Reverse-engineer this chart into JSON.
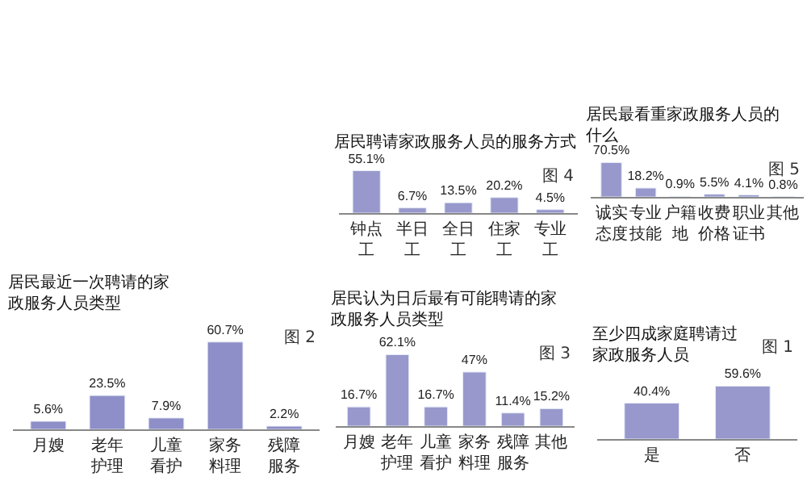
{
  "chart_data": [
    {
      "type": "bar",
      "title": "居民聘请家政服务人员的服务方式",
      "annotations": [
        "图 4"
      ],
      "categories": [
        "钟点工",
        "半日工",
        "全日工",
        "住家工",
        "专业工"
      ],
      "values": [
        55.1,
        6.7,
        13.5,
        20.2,
        4.5
      ],
      "value_labels": [
        "55.1%",
        "6.7%",
        "13.5%",
        "20.2%",
        "4.5%"
      ],
      "color": "#9898cc",
      "tick_labels": "x"
    },
    {
      "type": "bar",
      "title": "居民最看重家政服务人员的什么",
      "annotations": [
        "图 5"
      ],
      "categories": [
        "诚实态度",
        "专业技能",
        "户籍地",
        "收费价格",
        "职业证书",
        "其他"
      ],
      "values": [
        70.5,
        18.2,
        0.9,
        5.5,
        4.1,
        0.8
      ],
      "value_labels": [
        "70.5%",
        "18.2%",
        "0.9%",
        "5.5%",
        "4.1%",
        "0.8%"
      ],
      "color": "#9898cc",
      "tick_labels": "x"
    },
    {
      "type": "bar",
      "title": "居民最近一次聘请的家政服务人员类型",
      "annotations": [
        "图 2"
      ],
      "categories": [
        "月嫂",
        "老年护理",
        "儿童看护",
        "家务料理",
        "残障服务"
      ],
      "values": [
        5.6,
        23.5,
        7.9,
        60.7,
        2.2
      ],
      "value_labels": [
        "5.6%",
        "23.5%",
        "7.9%",
        "60.7%",
        "2.2%"
      ],
      "color": "#8e8ec8",
      "tick_labels": "x"
    },
    {
      "type": "bar",
      "title": "居民认为日后最有可能聘请的家政服务人员类型",
      "annotations": [
        "图 3"
      ],
      "categories": [
        "月嫂",
        "老年护理",
        "儿童看护",
        "家务料理",
        "残障服务",
        "其他"
      ],
      "values": [
        16.7,
        62.1,
        16.7,
        47,
        11.4,
        15.2
      ],
      "value_labels": [
        "16.7%",
        "62.1%",
        "16.7%",
        "47%",
        "11.4%",
        "15.2%"
      ],
      "color": "#9898cc",
      "tick_labels": "x"
    },
    {
      "type": "bar",
      "title": "至少四成家庭聘请过家政服务人员",
      "annotations": [
        "图 1"
      ],
      "categories": [
        "是",
        "否"
      ],
      "values": [
        40.4,
        59.6
      ],
      "value_labels": [
        "40.4%",
        "59.6%"
      ],
      "color": "#9898cc",
      "tick_labels": "x"
    }
  ]
}
